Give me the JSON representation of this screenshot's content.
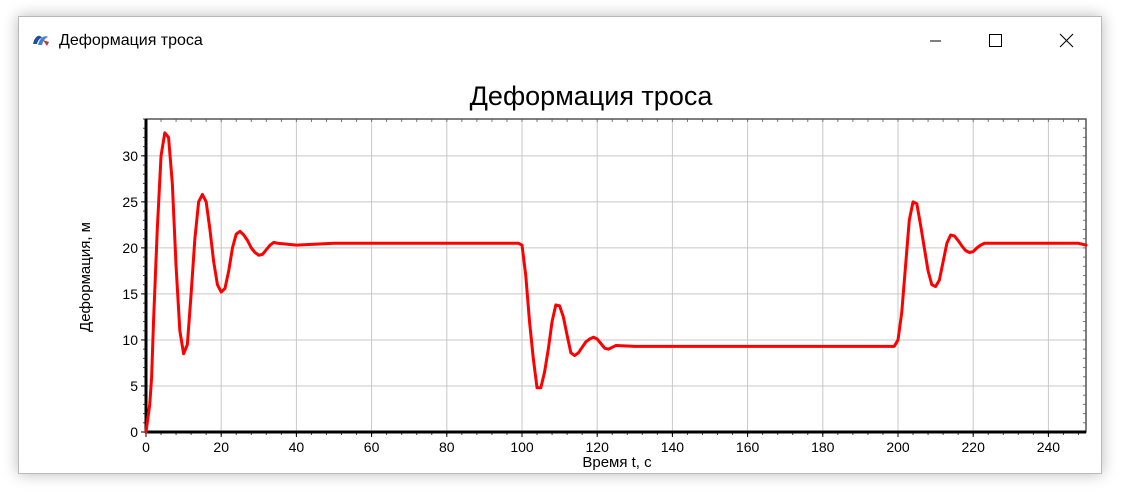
{
  "window": {
    "title": "Деформация троса",
    "icon": "app-logo-icon",
    "controls": [
      "minimize-icon",
      "maximize-icon",
      "close-icon"
    ]
  },
  "chart_data": {
    "type": "line",
    "title": "Деформация троса",
    "xlabel": "Время t, с",
    "ylabel": "Деформация, м",
    "xlim": [
      0,
      250
    ],
    "ylim": [
      0,
      34
    ],
    "xticks": [
      0,
      20,
      40,
      60,
      80,
      100,
      120,
      140,
      160,
      180,
      200,
      220,
      240
    ],
    "yticks": [
      0,
      5,
      10,
      15,
      20,
      25,
      30
    ],
    "grid": true,
    "legend": "none",
    "series_color": "#ff0000",
    "series": [
      {
        "x": [
          0,
          1,
          1.5,
          2,
          3,
          4,
          5,
          6,
          7,
          8,
          9,
          10,
          11,
          12,
          13,
          14,
          15,
          16,
          17,
          18,
          19,
          20,
          21,
          22,
          23,
          24,
          25,
          26,
          27,
          28,
          29,
          30,
          31,
          32,
          33,
          34,
          35,
          40,
          50,
          60,
          70,
          80,
          90,
          99,
          100,
          101,
          102,
          103,
          104,
          105,
          106,
          107,
          108,
          109,
          110,
          111,
          112,
          113,
          114,
          115,
          116,
          117,
          118,
          119,
          120,
          121,
          122,
          123,
          124,
          125,
          130,
          140,
          150,
          160,
          170,
          180,
          190,
          199,
          200,
          201,
          202,
          203,
          204,
          205,
          206,
          207,
          208,
          209,
          210,
          211,
          212,
          213,
          214,
          215,
          216,
          217,
          218,
          219,
          220,
          221,
          222,
          223,
          224,
          230,
          240,
          248,
          250
        ],
        "y": [
          0,
          3,
          6,
          12,
          22,
          30,
          32.5,
          32,
          27,
          18,
          11,
          8.5,
          9.5,
          15,
          21,
          25,
          25.8,
          25,
          22,
          18.5,
          16,
          15.2,
          15.6,
          17.5,
          20,
          21.5,
          21.8,
          21.4,
          20.8,
          20,
          19.5,
          19.2,
          19.3,
          19.8,
          20.3,
          20.6,
          20.5,
          20.3,
          20.5,
          20.5,
          20.5,
          20.5,
          20.5,
          20.5,
          20.3,
          17,
          12,
          8,
          4.8,
          4.8,
          6.5,
          9,
          12,
          13.8,
          13.7,
          12.5,
          10.5,
          8.6,
          8.3,
          8.6,
          9.2,
          9.8,
          10.1,
          10.3,
          10.1,
          9.6,
          9.1,
          9.0,
          9.2,
          9.4,
          9.3,
          9.3,
          9.3,
          9.3,
          9.3,
          9.3,
          9.3,
          9.3,
          10,
          13,
          18,
          23,
          25,
          24.8,
          22.5,
          20,
          17.5,
          16,
          15.8,
          16.5,
          18.5,
          20.5,
          21.4,
          21.3,
          20.8,
          20.2,
          19.7,
          19.5,
          19.6,
          20,
          20.3,
          20.5,
          20.5,
          20.5,
          20.5,
          20.5,
          20.3
        ]
      }
    ]
  }
}
